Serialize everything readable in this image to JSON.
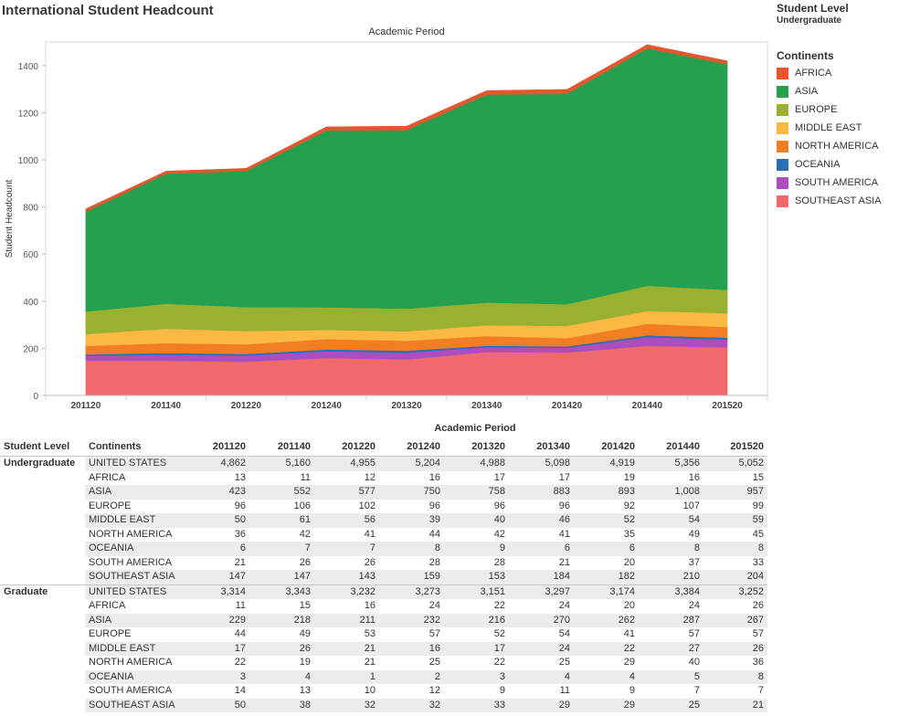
{
  "title": "International Student Headcount",
  "filter": {
    "title": "Student Level",
    "value": "Undergraduate"
  },
  "legend": {
    "title": "Continents",
    "items": [
      {
        "label": "AFRICA",
        "color": "#e4572e"
      },
      {
        "label": "ASIA",
        "color": "#24a04e"
      },
      {
        "label": "EUROPE",
        "color": "#99b131"
      },
      {
        "label": "MIDDLE EAST",
        "color": "#fbb843"
      },
      {
        "label": "NORTH AMERICA",
        "color": "#f37d22"
      },
      {
        "label": "OCEANIA",
        "color": "#2c6fb1"
      },
      {
        "label": "SOUTH AMERICA",
        "color": "#ac4ebe"
      },
      {
        "label": "SOUTHEAST ASIA",
        "color": "#f0696c"
      }
    ]
  },
  "chart_data": {
    "type": "area",
    "stacked": true,
    "title": "Academic Period",
    "xlabel": "",
    "ylabel": "Student Headcount",
    "x": [
      "201120",
      "201140",
      "201220",
      "201240",
      "201320",
      "201340",
      "201420",
      "201440",
      "201520"
    ],
    "yticks": [
      0,
      200,
      400,
      600,
      800,
      1000,
      1200,
      1400
    ],
    "ylim": [
      0,
      1500
    ],
    "series": [
      {
        "name": "SOUTHEAST ASIA",
        "color": "#f0696c",
        "values": [
          147,
          147,
          143,
          159,
          153,
          184,
          182,
          210,
          204
        ]
      },
      {
        "name": "SOUTH AMERICA",
        "color": "#ac4ebe",
        "values": [
          21,
          26,
          26,
          28,
          28,
          21,
          20,
          37,
          33
        ]
      },
      {
        "name": "OCEANIA",
        "color": "#2c6fb1",
        "values": [
          6,
          7,
          7,
          8,
          9,
          6,
          6,
          8,
          8
        ]
      },
      {
        "name": "NORTH AMERICA",
        "color": "#f37d22",
        "values": [
          36,
          42,
          41,
          44,
          42,
          41,
          35,
          49,
          45
        ]
      },
      {
        "name": "MIDDLE EAST",
        "color": "#fbb843",
        "values": [
          50,
          61,
          56,
          39,
          40,
          46,
          52,
          54,
          59
        ]
      },
      {
        "name": "EUROPE",
        "color": "#99b131",
        "values": [
          96,
          106,
          102,
          96,
          96,
          96,
          92,
          107,
          99
        ]
      },
      {
        "name": "ASIA",
        "color": "#24a04e",
        "values": [
          423,
          552,
          577,
          750,
          758,
          883,
          893,
          1008,
          957
        ]
      },
      {
        "name": "AFRICA",
        "color": "#e4572e",
        "values": [
          13,
          11,
          12,
          16,
          17,
          17,
          19,
          16,
          15
        ]
      }
    ],
    "grid": false
  },
  "table": {
    "title": "Academic Period",
    "level_header": "Student Level",
    "continent_header": "Continents",
    "periods": [
      "201120",
      "201140",
      "201220",
      "201240",
      "201320",
      "201340",
      "201420",
      "201440",
      "201520"
    ],
    "groups": [
      {
        "level": "Undergraduate",
        "rows": [
          {
            "continent": "UNITED STATES",
            "values": [
              "4,862",
              "5,160",
              "4,955",
              "5,204",
              "4,988",
              "5,098",
              "4,919",
              "5,356",
              "5,052"
            ]
          },
          {
            "continent": "AFRICA",
            "values": [
              "13",
              "11",
              "12",
              "16",
              "17",
              "17",
              "19",
              "16",
              "15"
            ]
          },
          {
            "continent": "ASIA",
            "values": [
              "423",
              "552",
              "577",
              "750",
              "758",
              "883",
              "893",
              "1,008",
              "957"
            ]
          },
          {
            "continent": "EUROPE",
            "values": [
              "96",
              "106",
              "102",
              "96",
              "96",
              "96",
              "92",
              "107",
              "99"
            ]
          },
          {
            "continent": "MIDDLE EAST",
            "values": [
              "50",
              "61",
              "56",
              "39",
              "40",
              "46",
              "52",
              "54",
              "59"
            ]
          },
          {
            "continent": "NORTH AMERICA",
            "values": [
              "36",
              "42",
              "41",
              "44",
              "42",
              "41",
              "35",
              "49",
              "45"
            ]
          },
          {
            "continent": "OCEANIA",
            "values": [
              "6",
              "7",
              "7",
              "8",
              "9",
              "6",
              "6",
              "8",
              "8"
            ]
          },
          {
            "continent": "SOUTH AMERICA",
            "values": [
              "21",
              "26",
              "26",
              "28",
              "28",
              "21",
              "20",
              "37",
              "33"
            ]
          },
          {
            "continent": "SOUTHEAST ASIA",
            "values": [
              "147",
              "147",
              "143",
              "159",
              "153",
              "184",
              "182",
              "210",
              "204"
            ]
          }
        ]
      },
      {
        "level": "Graduate",
        "rows": [
          {
            "continent": "UNITED STATES",
            "values": [
              "3,314",
              "3,343",
              "3,232",
              "3,273",
              "3,151",
              "3,297",
              "3,174",
              "3,384",
              "3,252"
            ]
          },
          {
            "continent": "AFRICA",
            "values": [
              "11",
              "15",
              "16",
              "24",
              "22",
              "24",
              "20",
              "24",
              "26"
            ]
          },
          {
            "continent": "ASIA",
            "values": [
              "229",
              "218",
              "211",
              "232",
              "216",
              "270",
              "262",
              "287",
              "267"
            ]
          },
          {
            "continent": "EUROPE",
            "values": [
              "44",
              "49",
              "53",
              "57",
              "52",
              "54",
              "41",
              "57",
              "57"
            ]
          },
          {
            "continent": "MIDDLE EAST",
            "values": [
              "17",
              "26",
              "21",
              "16",
              "17",
              "24",
              "22",
              "27",
              "26"
            ]
          },
          {
            "continent": "NORTH AMERICA",
            "values": [
              "22",
              "19",
              "21",
              "25",
              "22",
              "25",
              "29",
              "40",
              "36"
            ]
          },
          {
            "continent": "OCEANIA",
            "values": [
              "3",
              "4",
              "1",
              "2",
              "3",
              "4",
              "4",
              "5",
              "8"
            ]
          },
          {
            "continent": "SOUTH AMERICA",
            "values": [
              "14",
              "13",
              "10",
              "12",
              "9",
              "11",
              "9",
              "7",
              "7"
            ]
          },
          {
            "continent": "SOUTHEAST ASIA",
            "values": [
              "50",
              "38",
              "32",
              "32",
              "33",
              "29",
              "29",
              "25",
              "21"
            ]
          }
        ]
      }
    ]
  }
}
